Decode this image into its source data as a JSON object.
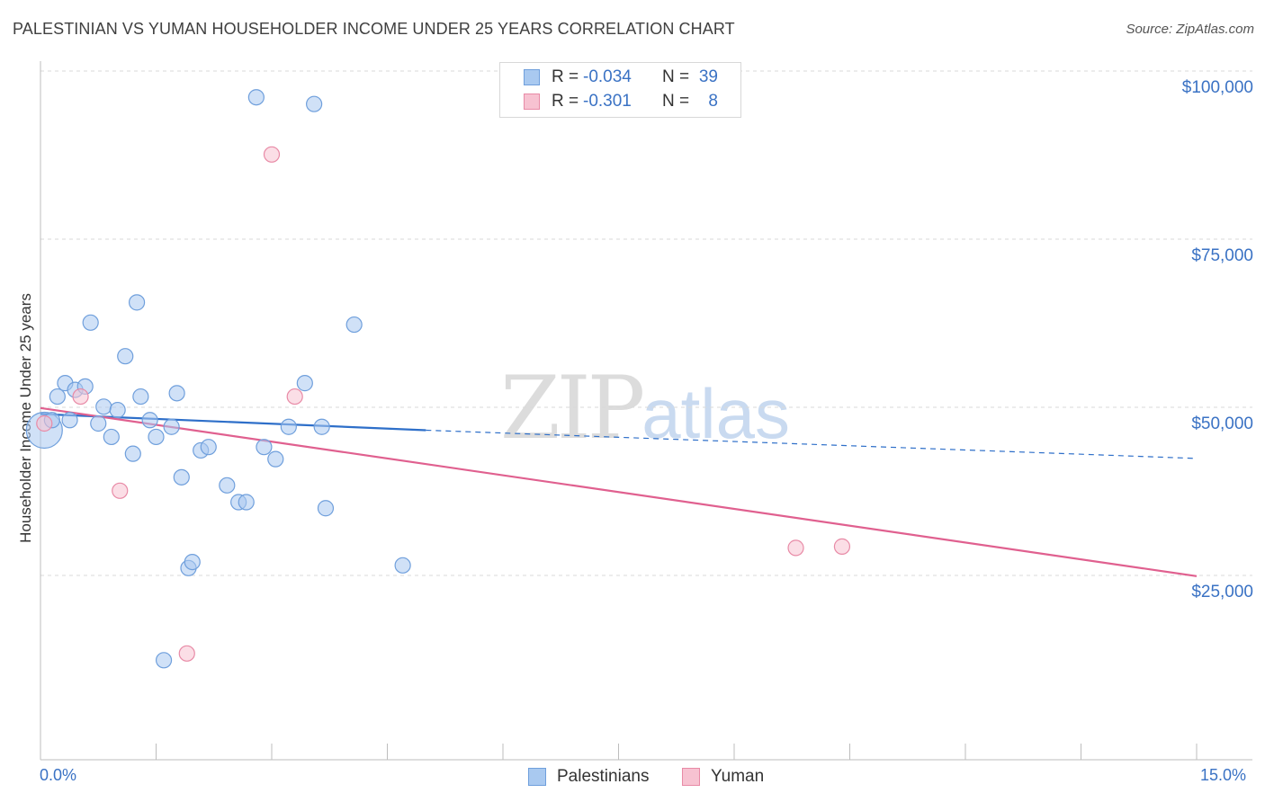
{
  "header": {
    "title": "PALESTINIAN VS YUMAN HOUSEHOLDER INCOME UNDER 25 YEARS CORRELATION CHART",
    "source": "Source: ZipAtlas.com"
  },
  "watermark": {
    "part1": "ZIP",
    "part2": "atlas"
  },
  "legend": {
    "rows": [
      {
        "r_label": "R =",
        "r_value": "-0.034",
        "n_label": "N =",
        "n_value": "39",
        "color": "#a9c9f0",
        "border": "#6f9fdc"
      },
      {
        "r_label": "R =",
        "r_value": "-0.301",
        "n_label": "N =",
        "n_value": "8",
        "color": "#f7c2d1",
        "border": "#e88aa6"
      }
    ]
  },
  "bottom_legend": [
    {
      "label": "Palestinians",
      "color": "#a9c9f0",
      "border": "#6f9fdc"
    },
    {
      "label": "Yuman",
      "color": "#f7c2d1",
      "border": "#e88aa6"
    }
  ],
  "axis": {
    "x_min_label": "0.0%",
    "x_max_label": "15.0%",
    "y_label": "Householder Income Under 25 years"
  },
  "colors": {
    "blue_point": "#a9c9f0",
    "blue_edge": "#6f9fdc",
    "pink_point": "#f7c2d1",
    "pink_edge": "#e88aa6",
    "blue_line": "#2e6fc9",
    "pink_line": "#e0608f",
    "grid": "#d9d9d9",
    "tick_text": "#3a72c4"
  },
  "chart_data": {
    "type": "scatter",
    "title": "PALESTINIAN VS YUMAN HOUSEHOLDER INCOME UNDER 25 YEARS CORRELATION CHART",
    "xlabel": "",
    "ylabel": "Householder Income Under 25 years",
    "xlim": [
      0,
      15
    ],
    "ylim": [
      0,
      101000
    ],
    "y_ticks": [
      25000,
      50000,
      75000,
      100000
    ],
    "y_tick_labels": [
      "$25,000",
      "$50,000",
      "$75,000",
      "$100,000"
    ],
    "x_ticks": [
      0,
      1.5,
      3,
      4.5,
      6,
      7.5,
      9,
      10.5,
      12,
      13.5,
      15
    ],
    "grid": true,
    "series": [
      {
        "name": "Palestinians",
        "r": -0.034,
        "n": 39,
        "points": [
          [
            0.05,
            49000
          ],
          [
            0.15,
            50500
          ],
          [
            0.22,
            54000
          ],
          [
            0.32,
            56000
          ],
          [
            0.38,
            50500
          ],
          [
            0.45,
            55000
          ],
          [
            0.58,
            55500
          ],
          [
            0.65,
            65000
          ],
          [
            0.75,
            50000
          ],
          [
            0.82,
            52500
          ],
          [
            0.92,
            48000
          ],
          [
            1.0,
            52000
          ],
          [
            1.1,
            60000
          ],
          [
            1.2,
            45500
          ],
          [
            1.25,
            68000
          ],
          [
            1.3,
            54000
          ],
          [
            1.42,
            50500
          ],
          [
            1.5,
            48000
          ],
          [
            1.6,
            14800
          ],
          [
            1.7,
            49500
          ],
          [
            1.77,
            54500
          ],
          [
            1.83,
            42000
          ],
          [
            1.92,
            28500
          ],
          [
            1.97,
            29400
          ],
          [
            2.08,
            46000
          ],
          [
            2.18,
            46500
          ],
          [
            2.42,
            40800
          ],
          [
            2.57,
            38300
          ],
          [
            2.67,
            38300
          ],
          [
            2.8,
            98500
          ],
          [
            2.9,
            46500
          ],
          [
            3.05,
            44700
          ],
          [
            3.22,
            49500
          ],
          [
            3.43,
            56000
          ],
          [
            3.55,
            97500
          ],
          [
            3.65,
            49500
          ],
          [
            3.7,
            37400
          ],
          [
            4.07,
            64700
          ],
          [
            4.7,
            28900
          ]
        ]
      },
      {
        "name": "Yuman",
        "r": -0.301,
        "n": 8,
        "points": [
          [
            0.05,
            50000
          ],
          [
            0.52,
            54000
          ],
          [
            1.03,
            40000
          ],
          [
            1.9,
            15800
          ],
          [
            3.0,
            90000
          ],
          [
            3.3,
            54000
          ],
          [
            9.8,
            31500
          ],
          [
            10.4,
            31700
          ]
        ]
      }
    ],
    "trend_lines": [
      {
        "series": "Palestinians",
        "x": [
          0,
          5.0
        ],
        "y": [
          51400,
          49000
        ],
        "extended_dashed_to": [
          15,
          44800
        ]
      },
      {
        "series": "Yuman",
        "x": [
          0,
          15
        ],
        "y": [
          52300,
          27300
        ]
      }
    ]
  }
}
